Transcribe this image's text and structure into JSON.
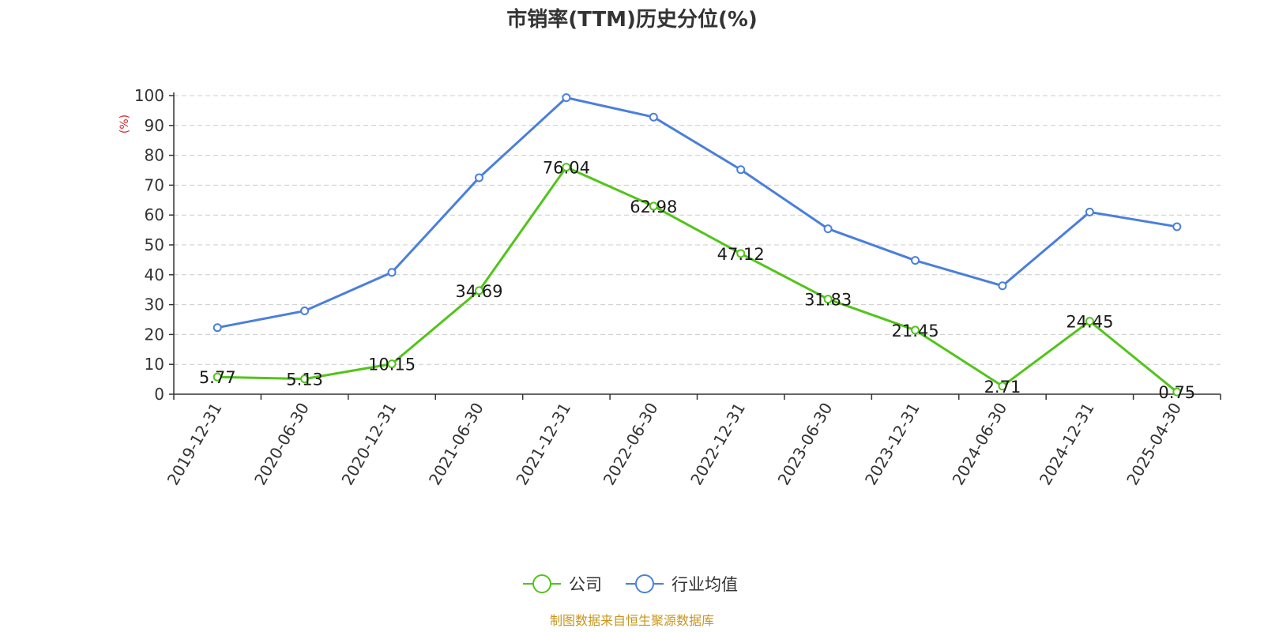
{
  "chart_data": {
    "type": "line",
    "title": "市销率(TTM)历史分位(%)",
    "ylabel": "(%)",
    "ylim": [
      0,
      100
    ],
    "yticks": [
      0,
      10,
      20,
      30,
      40,
      50,
      60,
      70,
      80,
      90,
      100
    ],
    "categories": [
      "2019-12-31",
      "2020-06-30",
      "2020-12-31",
      "2021-06-30",
      "2021-12-31",
      "2022-06-30",
      "2022-12-31",
      "2023-06-30",
      "2023-12-31",
      "2024-06-30",
      "2024-12-31",
      "2025-04-30"
    ],
    "series": [
      {
        "name": "公司",
        "color": "#52c41a",
        "show_labels": true,
        "values": [
          5.77,
          5.13,
          10.15,
          34.69,
          76.04,
          62.98,
          47.12,
          31.83,
          21.45,
          2.71,
          24.45,
          0.75
        ],
        "labels": [
          "5.77",
          "5.13",
          "10.15",
          "34.69",
          "76.04",
          "62.98",
          "47.12",
          "31.83",
          "21.45",
          "2.71",
          "24.45",
          "0.75"
        ]
      },
      {
        "name": "行业均值",
        "color": "#4a7fdb",
        "show_labels": false,
        "values": [
          22.3,
          27.9,
          40.8,
          72.5,
          99.3,
          92.8,
          75.2,
          55.4,
          44.8,
          36.3,
          61.0,
          56.1
        ]
      }
    ],
    "grid": true,
    "legend_position": "bottom-center",
    "source": "制图数据来自恒生聚源数据库",
    "source_color": "#c8961e",
    "ylabel_color": "#e02020"
  }
}
